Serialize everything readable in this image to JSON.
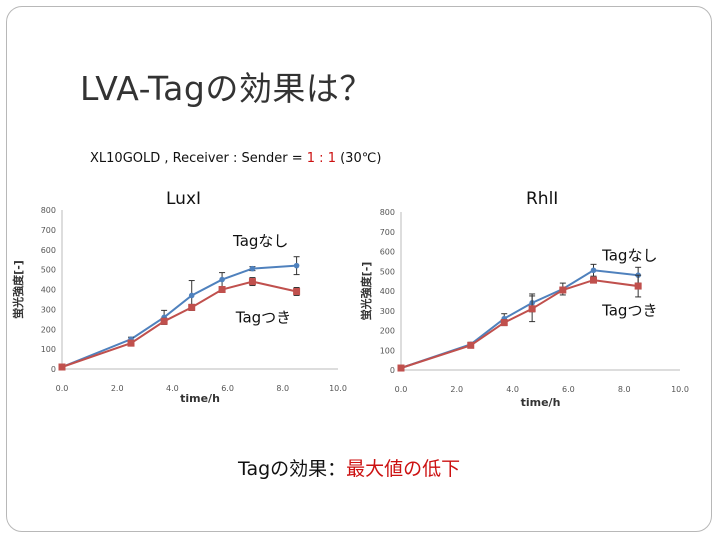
{
  "slide": {
    "title": "LVA-Tagの効果は？",
    "subtitle_main": "XL10GOLD , Receiver : Sender =",
    "subtitle_ratio": "1 : 1",
    "subtitle_temp": "(30℃)",
    "bottom_label": "Tagの効果：",
    "bottom_highlight": "最大値の低下"
  },
  "colors": {
    "series_tag_nashi": "#4f81bd",
    "series_tag_tsuki": "#c0504d",
    "highlight": "#cc1111"
  },
  "chart_data": [
    {
      "type": "line",
      "title": "LuxI",
      "xlabel": "time/h",
      "ylabel": "蛍光強度[-]",
      "xlim": [
        0,
        10
      ],
      "ylim": [
        0,
        800
      ],
      "xticks": [
        "0.0",
        "2.0",
        "4.0",
        "6.0",
        "8.0",
        "10.0"
      ],
      "yticks": [
        "0",
        "100",
        "200",
        "300",
        "400",
        "500",
        "600",
        "700",
        "800"
      ],
      "grid": false,
      "series": [
        {
          "name": "Tagなし",
          "color": "#4f81bd",
          "x": [
            0,
            2.5,
            3.7,
            4.7,
            5.8,
            6.9,
            8.5
          ],
          "y": [
            10,
            150,
            260,
            370,
            450,
            505,
            520
          ],
          "err": [
            0,
            10,
            35,
            75,
            35,
            10,
            45
          ]
        },
        {
          "name": "Tagつき",
          "color": "#c0504d",
          "x": [
            0,
            2.5,
            3.7,
            4.7,
            5.8,
            6.9,
            8.5
          ],
          "y": [
            10,
            130,
            240,
            310,
            400,
            440,
            390
          ],
          "err": [
            0,
            10,
            15,
            15,
            15,
            20,
            20
          ]
        }
      ],
      "annotations": [
        {
          "text": "Tagなし",
          "x": 7.2,
          "y": 620
        },
        {
          "text": "Tagつき",
          "x": 7.3,
          "y": 235
        }
      ]
    },
    {
      "type": "line",
      "title": "RhlI",
      "xlabel": "time/h",
      "ylabel": "蛍光強度[-]",
      "xlim": [
        0,
        10
      ],
      "ylim": [
        0,
        800
      ],
      "xticks": [
        "0.0",
        "2.0",
        "4.0",
        "6.0",
        "8.0",
        "10.0"
      ],
      "yticks": [
        "0",
        "100",
        "200",
        "300",
        "400",
        "500",
        "600",
        "700",
        "800"
      ],
      "grid": false,
      "series": [
        {
          "name": "Tagなし",
          "color": "#4f81bd",
          "x": [
            0,
            2.5,
            3.7,
            4.7,
            5.8,
            6.9,
            8.5
          ],
          "y": [
            10,
            130,
            260,
            340,
            410,
            505,
            480
          ],
          "err": [
            0,
            10,
            25,
            45,
            30,
            30,
            40
          ]
        },
        {
          "name": "Tagつき",
          "color": "#c0504d",
          "x": [
            0,
            2.5,
            3.7,
            4.7,
            5.8,
            6.9,
            8.5
          ],
          "y": [
            10,
            125,
            240,
            310,
            405,
            455,
            425
          ],
          "err": [
            0,
            10,
            15,
            65,
            15,
            10,
            55
          ]
        }
      ],
      "annotations": [
        {
          "text": "Tagなし",
          "x": 8.2,
          "y": 555
        },
        {
          "text": "Tagつき",
          "x": 8.2,
          "y": 275
        }
      ]
    }
  ]
}
